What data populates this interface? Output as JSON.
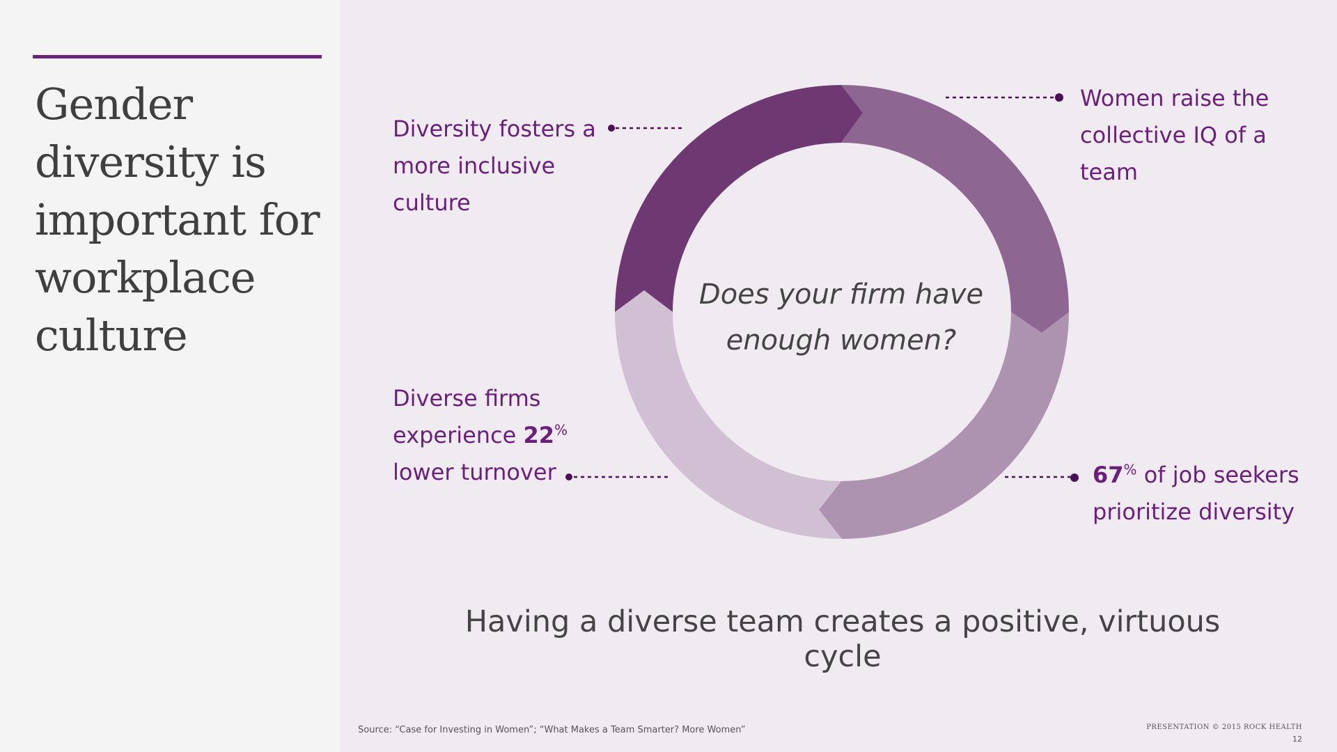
{
  "slide": {
    "title": "Gender diversity is important for workplace culture",
    "center_question": "Does your firm have enough women?",
    "tagline": "Having a diverse team creates a positive, virtuous cycle",
    "source": "Source: “Case for Investing in Women”; “What Makes a Team Smarter? More Women”",
    "copyright": "PRESENTATION © 2015 ROCK HEALTH",
    "page_number": "12"
  },
  "callouts": {
    "inclusive": {
      "text": "Diversity fosters a more inclusive culture"
    },
    "iq": {
      "text": "Women raise the collective IQ of a team"
    },
    "turnover": {
      "pre": "Diverse firms experience ",
      "value": "22",
      "unit": "%",
      "post": " lower turnover"
    },
    "jobseekers": {
      "value": "67",
      "unit": "%",
      "post": " of job seekers prioritize diversity"
    }
  },
  "colors": {
    "accent": "#6a2578",
    "segment_top_left": "#6e3873",
    "segment_top_right": "#8e6692",
    "segment_bottom_right": "#ae93b1",
    "segment_bottom_left": "#d1bfd3",
    "callout_text": "#6b1f7d",
    "leader": "#4a0f55"
  }
}
